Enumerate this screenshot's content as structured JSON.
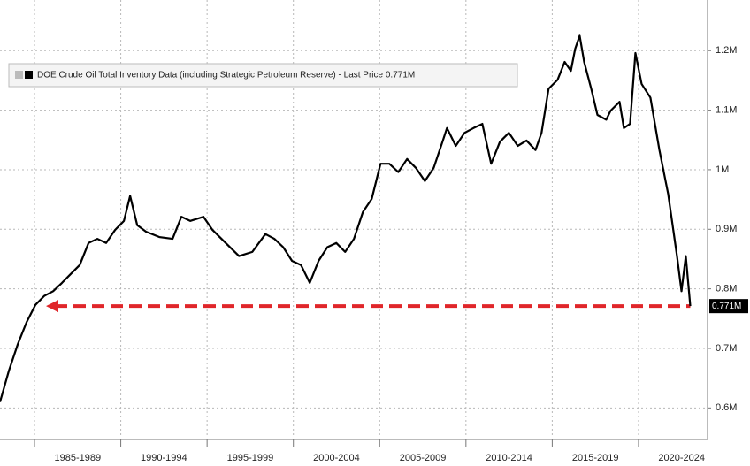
{
  "chart_data": {
    "type": "line",
    "legend": "DOE Crude Oil Total Inventory Data (including Strategic Petroleum Reserve) - Last Price 0.771M",
    "x": [
      1983.0,
      1983.51,
      1984.03,
      1984.54,
      1985.05,
      1985.56,
      1986.08,
      1986.59,
      1987.1,
      1987.62,
      1988.13,
      1988.64,
      1989.15,
      1989.67,
      1990.18,
      1990.54,
      1990.95,
      1991.46,
      1992.23,
      1993.0,
      1993.51,
      1994.03,
      1994.79,
      1995.31,
      1996.08,
      1996.85,
      1997.62,
      1998.38,
      1998.9,
      1999.41,
      1999.92,
      2000.44,
      2000.95,
      2001.46,
      2001.97,
      2002.49,
      2003.0,
      2003.51,
      2004.03,
      2004.54,
      2005.05,
      2005.56,
      2006.08,
      2006.59,
      2007.1,
      2007.62,
      2008.13,
      2008.64,
      2008.9,
      2009.41,
      2009.92,
      2010.44,
      2010.95,
      2011.46,
      2011.97,
      2012.49,
      2013.0,
      2013.51,
      2014.03,
      2014.38,
      2014.79,
      2015.31,
      2015.72,
      2016.08,
      2016.33,
      2016.59,
      2016.85,
      2017.26,
      2017.62,
      2018.13,
      2018.38,
      2018.9,
      2019.15,
      2019.51,
      2019.82,
      2020.18,
      2020.69,
      2021.21,
      2021.72,
      2022.23,
      2022.49,
      2022.74,
      2023.0
    ],
    "series": [
      {
        "name": "DOE Crude Oil Total Inventory Data (including Strategic Petroleum Reserve)",
        "color": "#000000",
        "values": [
          0.61,
          0.662,
          0.707,
          0.744,
          0.773,
          0.788,
          0.796,
          0.81,
          0.825,
          0.84,
          0.877,
          0.884,
          0.877,
          0.899,
          0.914,
          0.956,
          0.907,
          0.896,
          0.887,
          0.884,
          0.921,
          0.914,
          0.921,
          0.899,
          0.877,
          0.855,
          0.862,
          0.892,
          0.884,
          0.87,
          0.847,
          0.84,
          0.81,
          0.847,
          0.87,
          0.877,
          0.862,
          0.884,
          0.929,
          0.951,
          1.01,
          1.01,
          0.996,
          1.018,
          1.003,
          0.981,
          1.003,
          1.047,
          1.07,
          1.04,
          1.062,
          1.07,
          1.077,
          1.01,
          1.047,
          1.062,
          1.04,
          1.049,
          1.033,
          1.062,
          1.136,
          1.151,
          1.181,
          1.166,
          1.203,
          1.225,
          1.181,
          1.136,
          1.092,
          1.084,
          1.099,
          1.114,
          1.07,
          1.077,
          1.196,
          1.144,
          1.121,
          1.033,
          0.959,
          0.855,
          0.796,
          0.855,
          0.771
        ]
      }
    ],
    "last_value_label": "0.771M",
    "reference_line": {
      "value": 0.771,
      "color": "#e0262a"
    },
    "xlim": [
      1983,
      2024
    ],
    "xticks": [
      {
        "value": 1985,
        "label": "1985-1989"
      },
      {
        "value": 1990,
        "label": "1990-1994"
      },
      {
        "value": 1995,
        "label": "1995-1999"
      },
      {
        "value": 2000,
        "label": "2000-2004"
      },
      {
        "value": 2005,
        "label": "2005-2009"
      },
      {
        "value": 2010,
        "label": "2010-2014"
      },
      {
        "value": 2015,
        "label": "2015-2019"
      },
      {
        "value": 2020,
        "label": "2020-2024"
      }
    ],
    "ylim": [
      0.55,
      1.285
    ],
    "yticks": [
      {
        "value": 0.6,
        "label": "0.6M"
      },
      {
        "value": 0.7,
        "label": "0.7M"
      },
      {
        "value": 0.8,
        "label": "0.8M"
      },
      {
        "value": 0.9,
        "label": "0.9M"
      },
      {
        "value": 1.0,
        "label": "1M"
      },
      {
        "value": 1.1,
        "label": "1.1M"
      },
      {
        "value": 1.2,
        "label": "1.2M"
      }
    ],
    "grid": true
  }
}
